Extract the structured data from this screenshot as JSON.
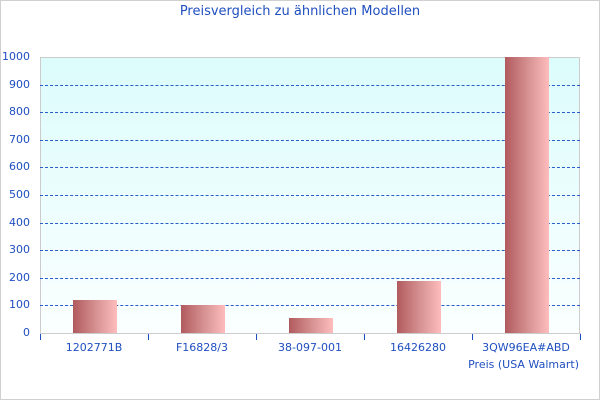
{
  "chart_data": {
    "type": "bar",
    "title": "Preisvergleich zu ähnlichen Modellen",
    "categories": [
      "1202771B",
      "F16828/3",
      "38-097-001",
      "16426280",
      "3QW96EA#ABD"
    ],
    "series": [
      {
        "name": "Preis (USA Walmart)",
        "values": [
          120,
          100,
          55,
          189,
          1000
        ]
      }
    ],
    "xlabel": "",
    "ylabel": "",
    "ylim": [
      0,
      1000
    ],
    "yticks": [
      0,
      100,
      200,
      300,
      400,
      500,
      600,
      700,
      800,
      900,
      1000
    ],
    "grid": true,
    "legend_position": "bottom-right"
  },
  "colors": {
    "text": "#1f4fc0",
    "grid": "#2a5ec8",
    "bar_dark": "#b15a5e",
    "bar_light": "#ffbcbc",
    "plot_bg_top": "#dcfcfc"
  }
}
